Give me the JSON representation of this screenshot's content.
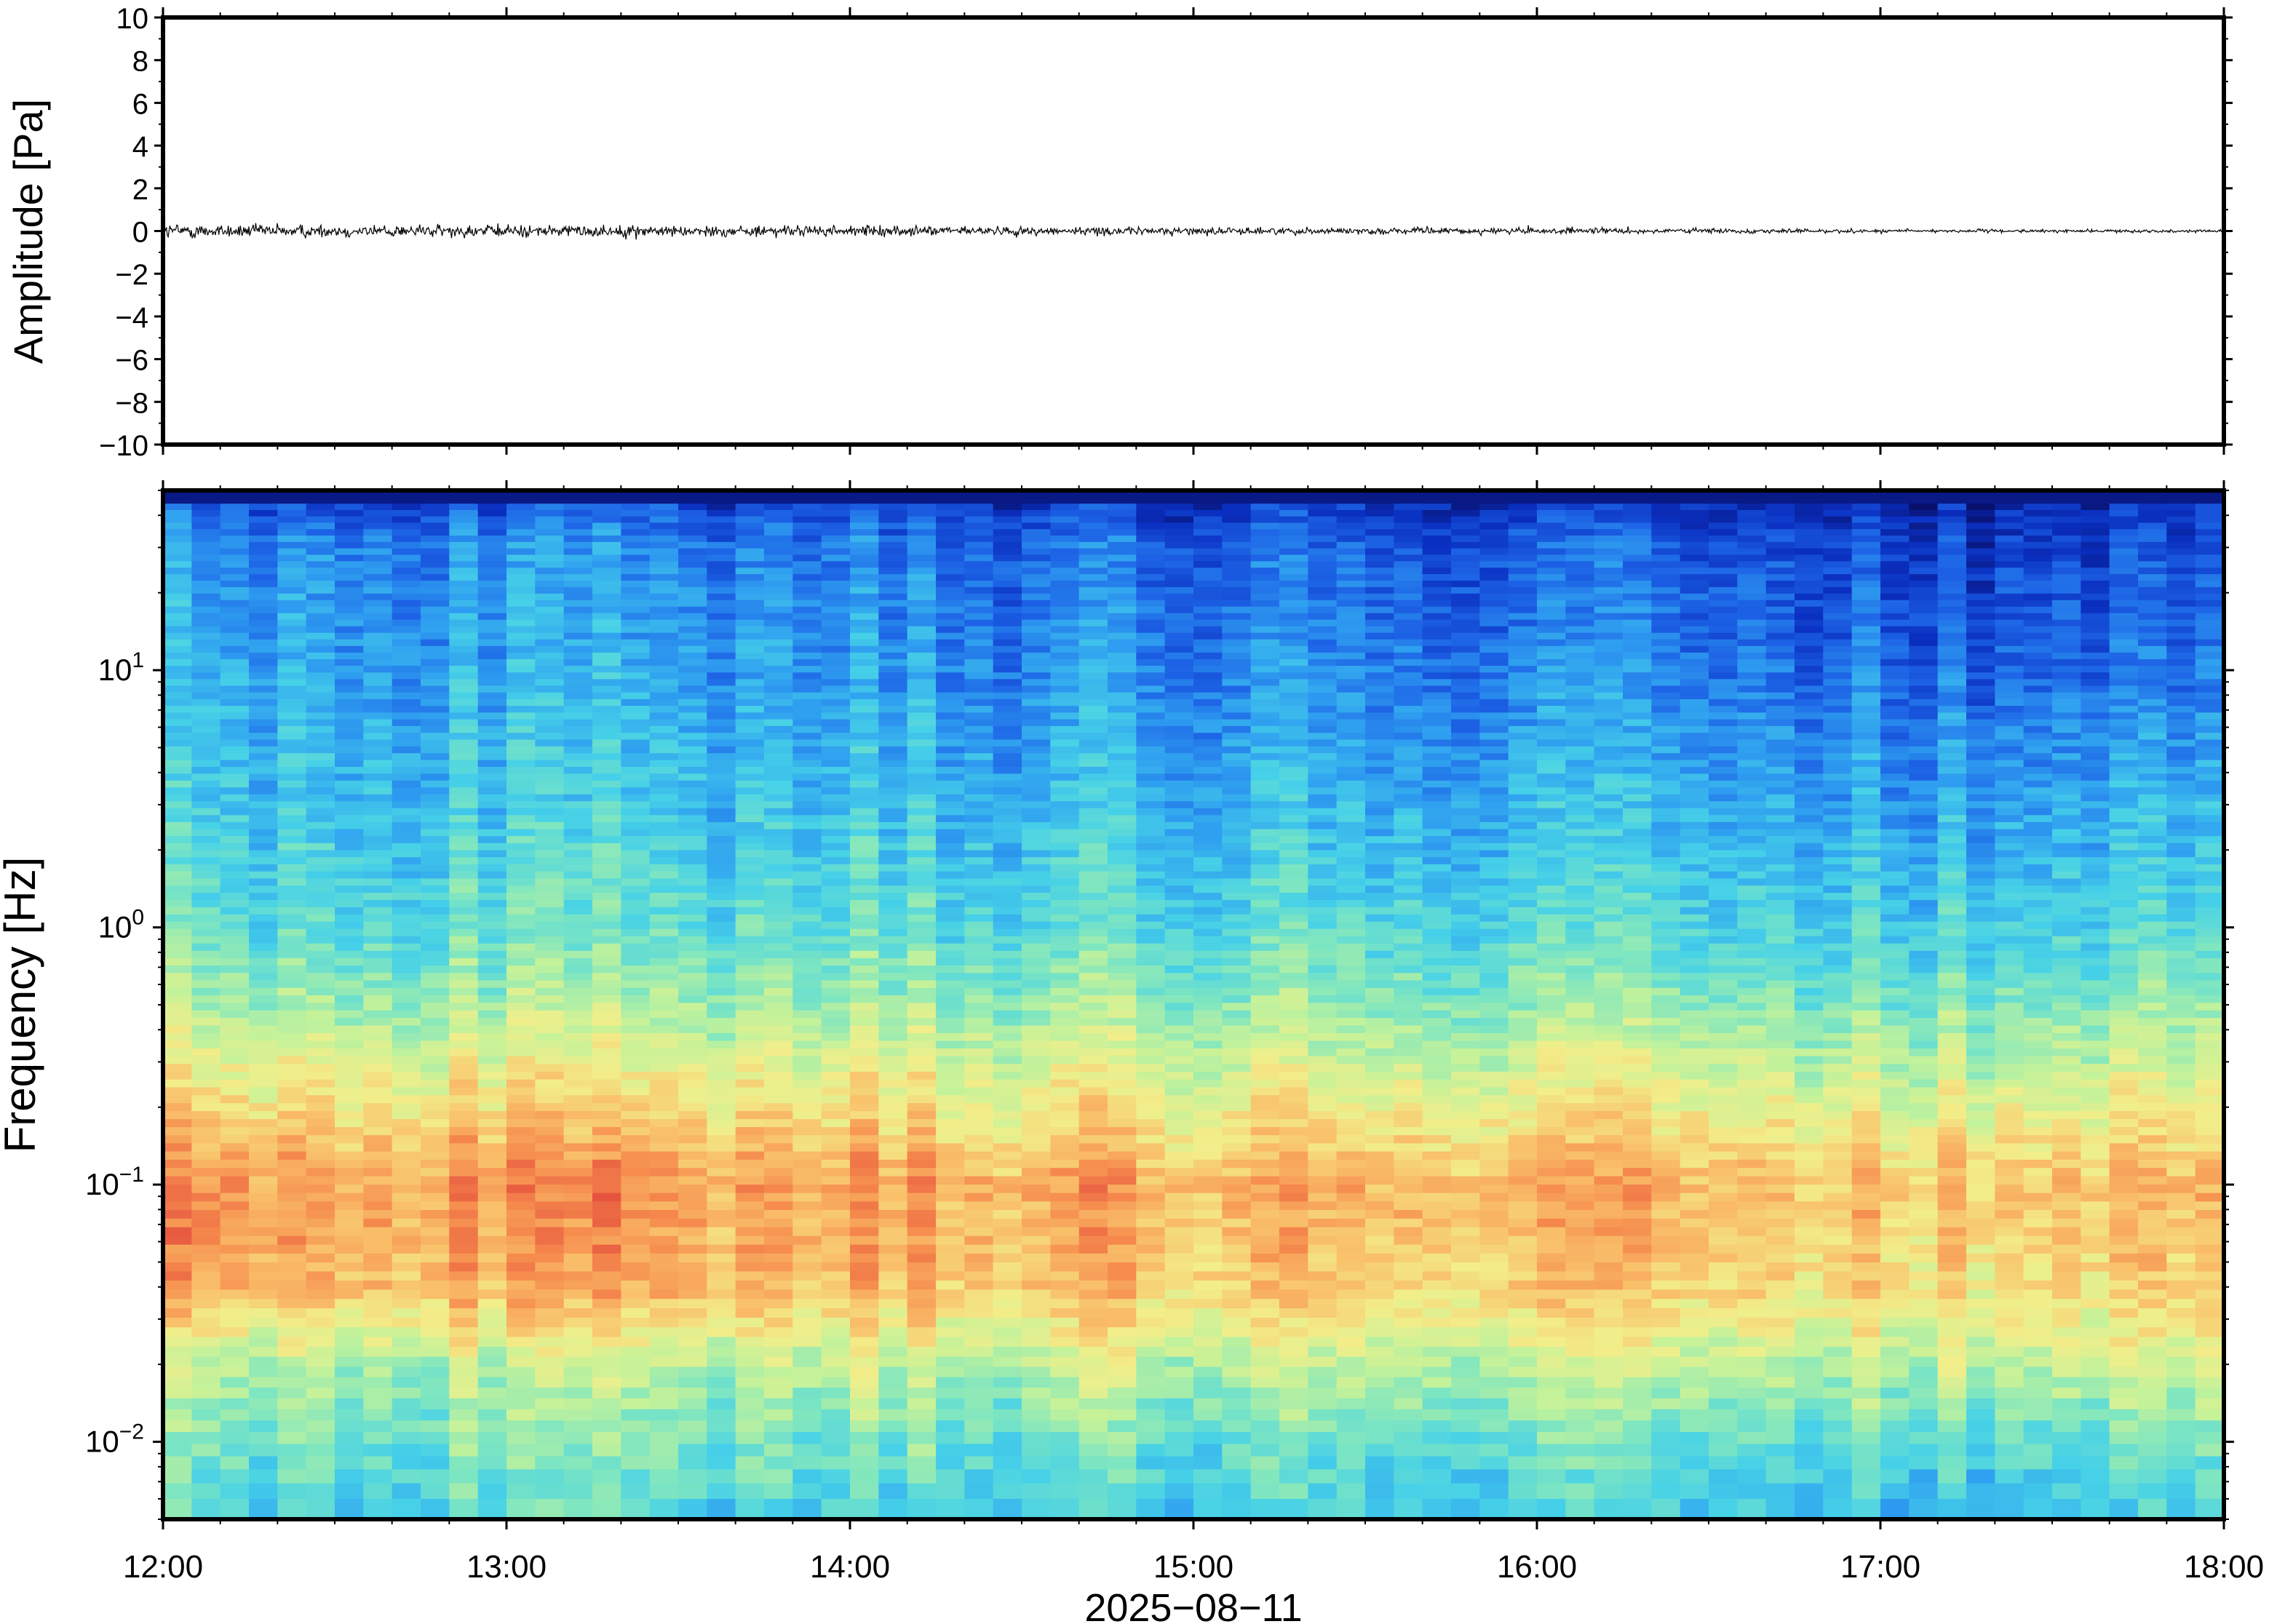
{
  "chart_data": [
    {
      "type": "line",
      "ylabel": "Amplitude [Pa]",
      "ylim": [
        -10,
        10
      ],
      "yticks": [
        10,
        8,
        6,
        4,
        2,
        0,
        -2,
        -4,
        -6,
        -8,
        -10
      ],
      "ytick_labels": [
        "10",
        "8",
        "6",
        "4",
        "2",
        "0",
        "−2",
        "−4",
        "−6",
        "−8",
        "−10"
      ],
      "xlim": [
        "2025-08-11 12:00",
        "2025-08-11 18:00"
      ],
      "series_color": "#000000",
      "envelope": {
        "times": [
          "12:00",
          "12:30",
          "13:00",
          "13:30",
          "14:00",
          "14:30",
          "15:00",
          "15:30",
          "16:00",
          "16:30",
          "17:00",
          "17:30",
          "18:00"
        ],
        "amplitude": [
          0.6,
          0.5,
          0.5,
          0.45,
          0.4,
          0.35,
          0.3,
          0.25,
          0.25,
          0.2,
          0.15,
          0.12,
          0.12
        ]
      }
    },
    {
      "type": "heatmap",
      "ylabel": "Frequency [Hz]",
      "yscale": "log",
      "ylim": [
        0.005,
        50
      ],
      "yticks": [
        {
          "value": 0.01,
          "base": "10",
          "exp": "−2"
        },
        {
          "value": 0.1,
          "base": "10",
          "exp": "−1"
        },
        {
          "value": 1,
          "base": "10",
          "exp": "0"
        },
        {
          "value": 10,
          "base": "10",
          "exp": "1"
        }
      ],
      "xlim": [
        "2025-08-11 12:00",
        "2025-08-11 18:00"
      ],
      "xticks": [
        "12:00",
        "13:00",
        "14:00",
        "15:00",
        "16:00",
        "17:00",
        "18:00"
      ],
      "xlabel": "2025−08−11",
      "colormap": [
        "#08106b",
        "#0a2fc0",
        "#1d63e6",
        "#2f9ff0",
        "#46d1e8",
        "#7fe6c0",
        "#c4f29a",
        "#f2ee8a",
        "#f9c06a",
        "#f68c4e",
        "#e2463b"
      ],
      "intensity_profile": {
        "log10_freq": [
          -2.3,
          -2.0,
          -1.7,
          -1.4,
          -1.0,
          -0.6,
          -0.3,
          0.0,
          0.5,
          1.0,
          1.5,
          1.7
        ],
        "level_at_start": [
          0.45,
          0.5,
          0.6,
          0.85,
          0.9,
          0.72,
          0.58,
          0.48,
          0.4,
          0.35,
          0.3,
          0.15
        ],
        "level_at_end": [
          0.35,
          0.45,
          0.6,
          0.72,
          0.78,
          0.62,
          0.5,
          0.4,
          0.3,
          0.2,
          0.12,
          0.05
        ]
      }
    }
  ]
}
